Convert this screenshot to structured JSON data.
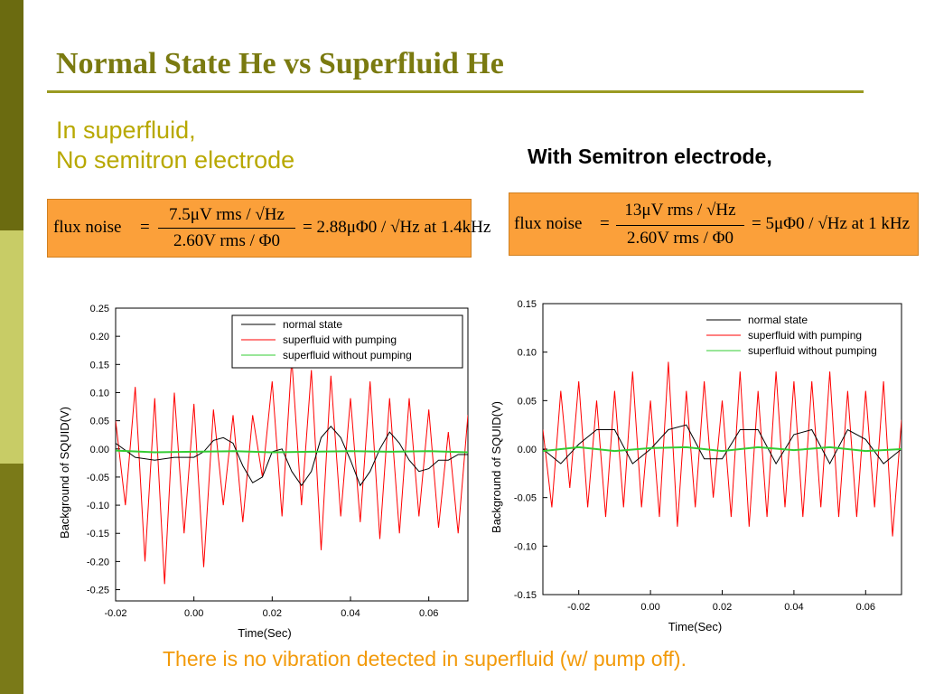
{
  "slide": {
    "title": "Normal State He vs Superfluid He",
    "subtitle_left_line1": "In superfluid,",
    "subtitle_left_line2": "No semitron electrode",
    "subtitle_right": "With Semitron electrode,",
    "conclusion": "There is no vibration detected in superfluid (w/ pump off).",
    "colors": {
      "sidebar_dark": "#6b6b10",
      "sidebar_light": "#c8cc66",
      "title": "#7a7a10",
      "formula_bg": "#fba03a",
      "conclusion": "#f29a0a"
    }
  },
  "formulas": [
    {
      "label": "flux noise",
      "eq": "=",
      "numerator": "7.5μV rms / √Hz",
      "denominator": "2.60V rms / Φ0",
      "result": "= 2.88μΦ0 / √Hz at 1.4kHz"
    },
    {
      "label": "flux noise",
      "eq": "=",
      "numerator": "13μV rms / √Hz",
      "denominator": "2.60V rms / Φ0",
      "result": "= 5μΦ0 / √Hz at 1 kHz"
    }
  ],
  "chart_data": [
    {
      "type": "line",
      "xlabel": "Time(Sec)",
      "ylabel": "Background of SQUID(V)",
      "xlim": [
        -0.02,
        0.07
      ],
      "ylim": [
        -0.27,
        0.25
      ],
      "xticks": [
        -0.02,
        0.0,
        0.02,
        0.04,
        0.06
      ],
      "xtick_labels": [
        "-0.02",
        "0.00",
        "0.02",
        "0.04",
        "0.06"
      ],
      "yticks": [
        0.25,
        0.2,
        0.15,
        0.1,
        0.05,
        0.0,
        -0.05,
        -0.1,
        -0.15,
        -0.2,
        -0.25
      ],
      "ytick_labels": [
        "0.25",
        "0.20",
        "0.15",
        "0.10",
        "0.05",
        "0.00",
        "-0.05",
        "-0.10",
        "-0.15",
        "-0.20",
        "-0.25"
      ],
      "legend_position": "top-right",
      "series": [
        {
          "name": "normal state",
          "color": "#000000",
          "x": [
            -0.02,
            -0.015,
            -0.01,
            -0.005,
            0.0,
            0.0025,
            0.005,
            0.0075,
            0.01,
            0.0125,
            0.015,
            0.0175,
            0.02,
            0.0225,
            0.025,
            0.0275,
            0.03,
            0.0325,
            0.035,
            0.0375,
            0.04,
            0.0425,
            0.045,
            0.0475,
            0.05,
            0.0525,
            0.055,
            0.0575,
            0.06,
            0.0625,
            0.065,
            0.0675,
            0.07
          ],
          "y": [
            0.01,
            -0.015,
            -0.02,
            -0.015,
            -0.015,
            -0.005,
            0.015,
            0.02,
            0.01,
            -0.03,
            -0.06,
            -0.05,
            -0.005,
            0.0,
            -0.04,
            -0.065,
            -0.04,
            0.02,
            0.04,
            0.02,
            -0.02,
            -0.065,
            -0.04,
            0.0,
            0.03,
            0.01,
            -0.02,
            -0.04,
            -0.035,
            -0.02,
            -0.02,
            -0.01,
            -0.01
          ]
        },
        {
          "name": "superfluid with pumping",
          "color": "#ff0000",
          "x": [
            -0.02,
            -0.0175,
            -0.015,
            -0.0125,
            -0.01,
            -0.0075,
            -0.005,
            -0.0025,
            0.0,
            0.0025,
            0.005,
            0.0075,
            0.01,
            0.0125,
            0.015,
            0.0175,
            0.02,
            0.0225,
            0.025,
            0.0275,
            0.03,
            0.0325,
            0.035,
            0.0375,
            0.04,
            0.0425,
            0.045,
            0.0475,
            0.05,
            0.0525,
            0.055,
            0.0575,
            0.06,
            0.0625,
            0.065,
            0.0675,
            0.07
          ],
          "y": [
            0.05,
            -0.1,
            0.11,
            -0.2,
            0.09,
            -0.24,
            0.1,
            -0.15,
            0.08,
            -0.21,
            0.07,
            -0.1,
            0.06,
            -0.13,
            0.06,
            -0.05,
            0.12,
            -0.12,
            0.16,
            -0.1,
            0.14,
            -0.18,
            0.13,
            -0.12,
            0.09,
            -0.13,
            0.12,
            -0.16,
            0.09,
            -0.15,
            0.09,
            -0.12,
            0.07,
            -0.14,
            0.03,
            -0.15,
            0.06
          ]
        },
        {
          "name": "superfluid without pumping",
          "color": "#33cc33",
          "x": [
            -0.02,
            -0.01,
            0.0,
            0.01,
            0.02,
            0.03,
            0.04,
            0.05,
            0.06,
            0.07
          ],
          "y": [
            -0.003,
            -0.006,
            -0.005,
            -0.004,
            -0.006,
            -0.005,
            -0.004,
            -0.005,
            -0.004,
            -0.006
          ]
        }
      ]
    },
    {
      "type": "line",
      "xlabel": "Time(Sec)",
      "ylabel": "Background of SQUID(V)",
      "xlim": [
        -0.03,
        0.07
      ],
      "ylim": [
        -0.15,
        0.15
      ],
      "xticks": [
        -0.02,
        0.0,
        0.02,
        0.04,
        0.06
      ],
      "xtick_labels": [
        "-0.02",
        "0.00",
        "0.02",
        "0.04",
        "0.06"
      ],
      "yticks": [
        0.15,
        0.1,
        0.05,
        0.0,
        -0.05,
        -0.1,
        -0.15
      ],
      "ytick_labels": [
        "0.15",
        "0.10",
        "0.05",
        "0.00",
        "-0.05",
        "-0.10",
        "-0.15"
      ],
      "legend_position": "top-right",
      "series": [
        {
          "name": "normal state",
          "color": "#000000",
          "x": [
            -0.03,
            -0.025,
            -0.02,
            -0.015,
            -0.01,
            -0.005,
            0.0,
            0.005,
            0.01,
            0.015,
            0.02,
            0.025,
            0.03,
            0.035,
            0.04,
            0.045,
            0.05,
            0.055,
            0.06,
            0.065,
            0.07
          ],
          "y": [
            0.0,
            -0.015,
            0.005,
            0.02,
            0.02,
            -0.015,
            0.0,
            0.02,
            0.025,
            -0.01,
            -0.01,
            0.02,
            0.02,
            -0.015,
            0.015,
            0.02,
            -0.015,
            0.02,
            0.01,
            -0.015,
            0.0
          ]
        },
        {
          "name": "superfluid with pumping",
          "color": "#ff0000",
          "x": [
            -0.03,
            -0.0275,
            -0.025,
            -0.0225,
            -0.02,
            -0.0175,
            -0.015,
            -0.0125,
            -0.01,
            -0.0075,
            -0.005,
            -0.0025,
            0.0,
            0.0025,
            0.005,
            0.0075,
            0.01,
            0.0125,
            0.015,
            0.0175,
            0.02,
            0.0225,
            0.025,
            0.0275,
            0.03,
            0.0325,
            0.035,
            0.0375,
            0.04,
            0.0425,
            0.045,
            0.0475,
            0.05,
            0.0525,
            0.055,
            0.0575,
            0.06,
            0.0625,
            0.065,
            0.0675,
            0.07
          ],
          "y": [
            0.02,
            -0.06,
            0.06,
            -0.04,
            0.07,
            -0.06,
            0.05,
            -0.07,
            0.06,
            -0.06,
            0.08,
            -0.06,
            0.05,
            -0.07,
            0.09,
            -0.08,
            0.06,
            -0.06,
            0.07,
            -0.05,
            0.05,
            -0.07,
            0.08,
            -0.08,
            0.06,
            -0.07,
            0.08,
            -0.06,
            0.07,
            -0.07,
            0.07,
            -0.06,
            0.08,
            -0.07,
            0.06,
            -0.07,
            0.06,
            -0.06,
            0.07,
            -0.09,
            0.03
          ]
        },
        {
          "name": "superfluid without pumping",
          "color": "#33cc33",
          "x": [
            -0.03,
            -0.02,
            -0.01,
            0.0,
            0.01,
            0.02,
            0.03,
            0.04,
            0.05,
            0.06,
            0.07
          ],
          "y": [
            -0.002,
            0.002,
            -0.002,
            0.001,
            0.002,
            -0.002,
            0.002,
            -0.001,
            0.002,
            -0.002,
            0.0
          ]
        }
      ]
    }
  ]
}
